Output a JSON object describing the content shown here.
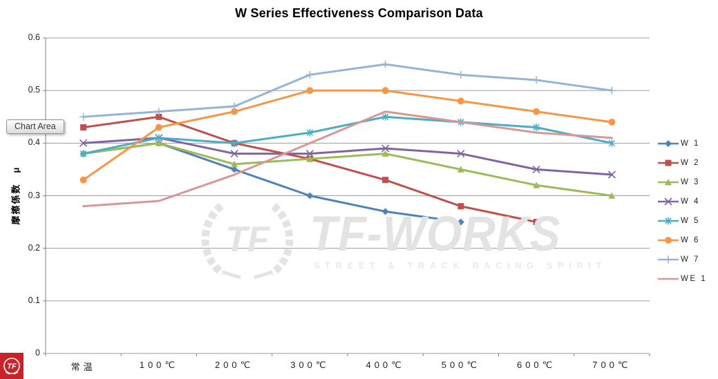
{
  "title": "W Series Effectiveness Comparison Data",
  "tooltip": "Chart Area",
  "y_axis_title": "摩擦係数　μ",
  "chart_data": {
    "type": "line",
    "categories": [
      "常温",
      "100℃",
      "200℃",
      "300℃",
      "400℃",
      "500℃",
      "600℃",
      "700℃"
    ],
    "series": [
      {
        "name": "W 1",
        "color": "#4F81BD",
        "marker": "diamond",
        "values": [
          0.38,
          0.4,
          0.35,
          0.3,
          0.27,
          0.25,
          null,
          null
        ]
      },
      {
        "name": "W 2",
        "color": "#C0504D",
        "marker": "square",
        "values": [
          0.43,
          0.45,
          0.4,
          0.37,
          0.33,
          0.28,
          0.25,
          null
        ]
      },
      {
        "name": "W 3",
        "color": "#9BBB59",
        "marker": "triangle",
        "values": [
          0.38,
          0.4,
          0.36,
          0.37,
          0.38,
          0.35,
          0.32,
          0.3
        ]
      },
      {
        "name": "W 4",
        "color": "#8064A2",
        "marker": "x",
        "values": [
          0.4,
          0.41,
          0.38,
          0.38,
          0.39,
          0.38,
          0.35,
          0.34
        ]
      },
      {
        "name": "W 5",
        "color": "#4BACC6",
        "marker": "star",
        "values": [
          0.38,
          0.41,
          0.4,
          0.42,
          0.45,
          0.44,
          0.43,
          0.4
        ]
      },
      {
        "name": "W 6",
        "color": "#F79646",
        "marker": "circle",
        "values": [
          0.33,
          0.43,
          0.46,
          0.5,
          0.5,
          0.48,
          0.46,
          0.44
        ]
      },
      {
        "name": "W 7",
        "color": "#95B3D7",
        "marker": "plus",
        "values": [
          0.45,
          0.46,
          0.47,
          0.53,
          0.55,
          0.53,
          0.52,
          0.5
        ]
      },
      {
        "name": "WE 1",
        "color": "#D99694",
        "marker": "none",
        "values": [
          0.28,
          0.29,
          0.34,
          0.4,
          0.46,
          0.44,
          0.42,
          0.41
        ]
      }
    ],
    "ylim": [
      0,
      0.6
    ],
    "y_ticks": [
      "0",
      "0.1",
      "0.2",
      "0.3",
      "0.4",
      "0.5",
      "0.6"
    ],
    "xlabel": "",
    "ylabel": "摩擦係数　μ",
    "grid": true,
    "legend_position": "right"
  },
  "watermark": {
    "brand": "TF-WORKS",
    "tagline": "STREET & TRACK RACING SPIRIT",
    "monogram": "TF"
  },
  "logo": {
    "monogram": "TF"
  }
}
